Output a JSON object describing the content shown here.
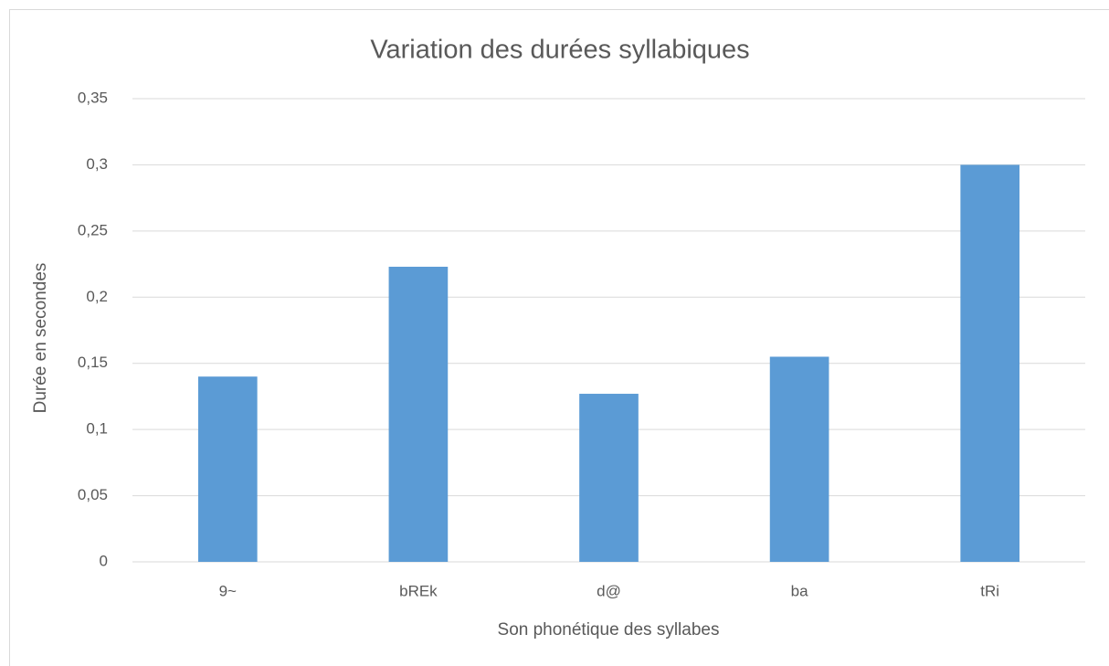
{
  "chart_data": {
    "type": "bar",
    "title": "Variation des durées syllabiques",
    "x_label": "Son phonétique des syllabes",
    "y_label": "Durée en secondes",
    "categories": [
      "9~",
      "bREk",
      "d@",
      "ba",
      "tRi"
    ],
    "values": [
      0.14,
      0.223,
      0.127,
      0.155,
      0.3
    ],
    "color": "#5b9bd5",
    "ylim": [
      0,
      0.35
    ],
    "yticks": [
      0,
      {
        "value": 0.05,
        "label": "0,05"
      },
      {
        "value": 0.1,
        "label": "0,1"
      },
      {
        "value": 0.15,
        "label": "0,15"
      },
      {
        "value": 0.2,
        "label": "0,2"
      },
      {
        "value": 0.25,
        "label": "0,25"
      },
      {
        "value": 0.3,
        "label": "0,3"
      },
      {
        "value": 0.35,
        "label": "0,35"
      }
    ],
    "grid": true
  }
}
